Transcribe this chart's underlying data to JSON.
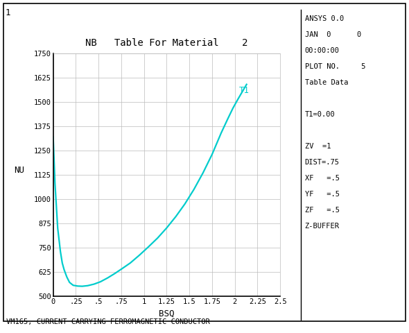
{
  "title": "NB   Table For Material    2",
  "xlabel": "BSQ",
  "ylabel": "NU",
  "curve_label": "T1",
  "annotation_bottom": "VM165, CURRENT CARRYING FERROMAGNETIC CONDUCTOR",
  "right_lines": [
    "ANSYS 0.0",
    "JAN  0      0",
    "00:00:00",
    "PLOT NO.     5",
    "Table Data",
    "",
    "T1=0.00",
    "",
    "ZV  =1",
    "DIST=.75",
    "XF   =.5",
    "YF   =.5",
    "ZF   =.5",
    "Z-BUFFER"
  ],
  "corner_label": "1",
  "xlim": [
    0,
    2.5
  ],
  "ylim": [
    500,
    1750
  ],
  "xticks": [
    0,
    0.25,
    0.5,
    0.75,
    1.0,
    1.25,
    1.5,
    1.75,
    2.0,
    2.25,
    2.5
  ],
  "xtick_labels": [
    "0",
    ".25",
    ".5",
    ".75",
    "1",
    "1.25",
    "1.5",
    "1.75",
    "2",
    "2.25",
    "2.5"
  ],
  "yticks": [
    500,
    625,
    750,
    875,
    1000,
    1125,
    1250,
    1375,
    1500,
    1625,
    1750
  ],
  "ytick_labels": [
    "500",
    "625",
    "750",
    "875",
    "1000",
    "1125",
    "1250",
    "1375",
    "1500",
    "1625",
    "1750"
  ],
  "curve_color": "#00CCCC",
  "background_color": "#FFFFFF",
  "plot_bg_color": "#FFFFFF",
  "grid_color": "#BBBBBB",
  "text_color": "#000000",
  "font_family": "monospace",
  "bsq": [
    0.0,
    0.02,
    0.05,
    0.08,
    0.1,
    0.12,
    0.15,
    0.18,
    0.22,
    0.27,
    0.32,
    0.38,
    0.45,
    0.52,
    0.6,
    0.68,
    0.76,
    0.85,
    0.95,
    1.05,
    1.15,
    1.25,
    1.35,
    1.45,
    1.55,
    1.65,
    1.75,
    1.85,
    1.92,
    1.98,
    2.03,
    2.08,
    2.13
  ],
  "nu": [
    1320,
    1080,
    850,
    730,
    672,
    638,
    600,
    572,
    557,
    553,
    552,
    555,
    563,
    575,
    595,
    618,
    643,
    672,
    712,
    755,
    800,
    852,
    910,
    975,
    1050,
    1135,
    1230,
    1340,
    1410,
    1468,
    1510,
    1550,
    1590
  ]
}
